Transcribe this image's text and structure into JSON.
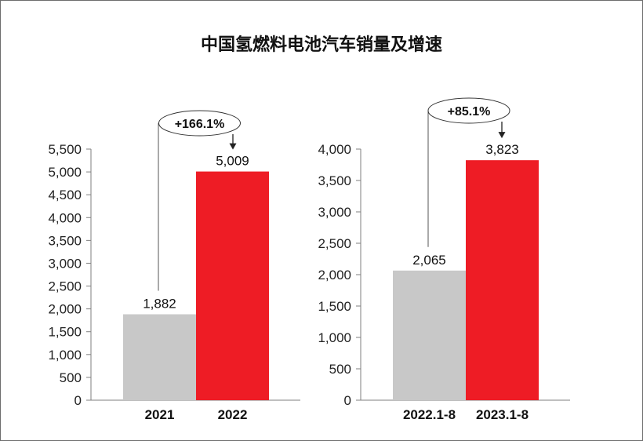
{
  "title": "中国氢燃料电池汽车销量及增速",
  "colors": {
    "gray": "#c8c8c8",
    "red": "#ee1c25",
    "axis": "#7f7f7f"
  },
  "chart_data": [
    {
      "type": "bar",
      "categories": [
        "2021",
        "2022"
      ],
      "values": [
        1882,
        5009
      ],
      "value_labels": [
        "1,882",
        "5,009"
      ],
      "bar_colors": [
        "#c8c8c8",
        "#ee1c25"
      ],
      "ylim": [
        0,
        5500
      ],
      "yticks": [
        0,
        500,
        1000,
        1500,
        2000,
        2500,
        3000,
        3500,
        4000,
        4500,
        5000,
        5500
      ],
      "ytick_labels": [
        "0",
        "500",
        "1,000",
        "1,500",
        "2,000",
        "2,500",
        "3,000",
        "3,500",
        "4,000",
        "4,500",
        "5,000",
        "5,500"
      ],
      "growth_label": "+166.1%"
    },
    {
      "type": "bar",
      "categories": [
        "2022.1-8",
        "2023.1-8"
      ],
      "values": [
        2065,
        3823
      ],
      "value_labels": [
        "2,065",
        "3,823"
      ],
      "bar_colors": [
        "#c8c8c8",
        "#ee1c25"
      ],
      "ylim": [
        0,
        4000
      ],
      "yticks": [
        0,
        500,
        1000,
        1500,
        2000,
        2500,
        3000,
        3500,
        4000
      ],
      "ytick_labels": [
        "0",
        "500",
        "1,000",
        "1,500",
        "2,000",
        "2,500",
        "3,000",
        "3,500",
        "4,000"
      ],
      "growth_label": "+85.1%"
    }
  ]
}
